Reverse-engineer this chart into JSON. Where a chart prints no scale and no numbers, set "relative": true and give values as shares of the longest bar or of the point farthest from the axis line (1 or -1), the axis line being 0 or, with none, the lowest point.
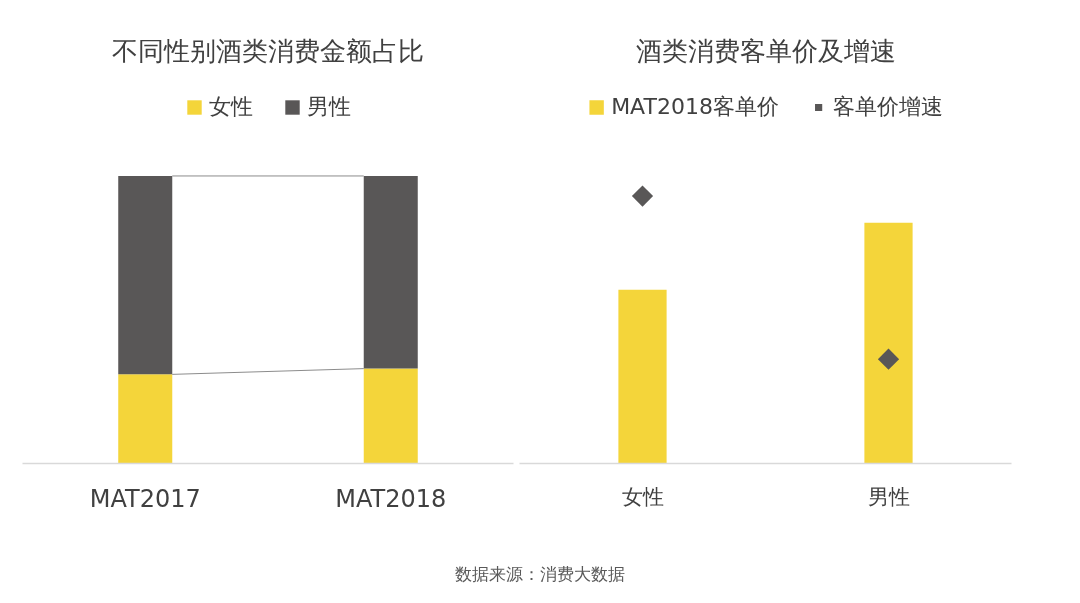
{
  "chart_data": [
    {
      "type": "bar",
      "title": "不同性别酒类消费金额占比",
      "categories": [
        "MAT2017",
        "MAT2018"
      ],
      "stacked": true,
      "relative": true,
      "legend": "top",
      "series": [
        {
          "name": "女性",
          "color": "#f4d53a",
          "values": [
            0.31,
            0.33
          ]
        },
        {
          "name": "男性",
          "color": "#595757",
          "values": [
            0.69,
            0.67
          ]
        }
      ],
      "annotations": [
        "数据来源：消费大数据"
      ]
    },
    {
      "type": "bar",
      "title": "酒类消费客单价及增速",
      "categories": [
        "女性",
        "男性"
      ],
      "relative": true,
      "legend": "top",
      "series": [
        {
          "name": "MAT2018客单价",
          "color": "#f4d53a",
          "values": [
            0.65,
            0.9
          ]
        },
        {
          "name": "客单价增速",
          "type": "scatter",
          "marker": "diamond",
          "color": "#595757",
          "values": [
            1,
            0.39
          ]
        }
      ]
    }
  ]
}
